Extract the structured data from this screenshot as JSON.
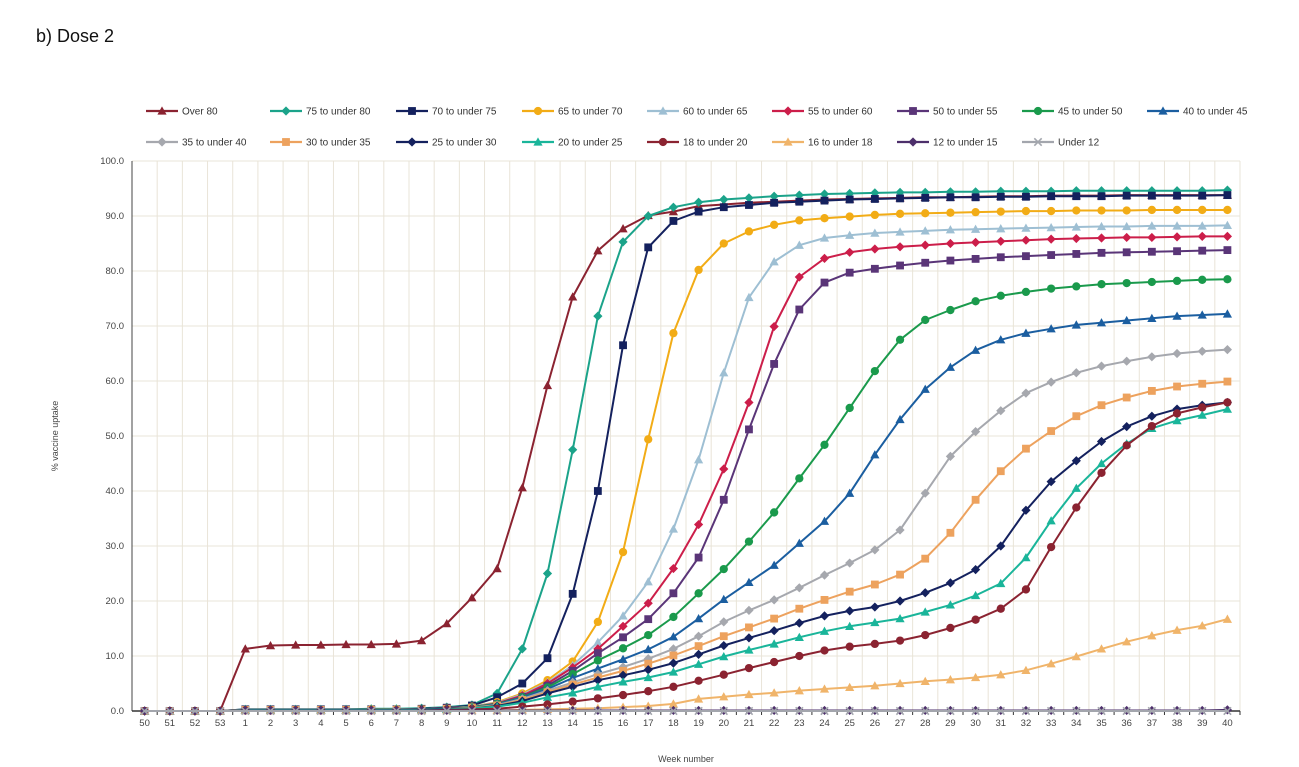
{
  "page_title": "b) Dose 2",
  "chart_data": {
    "type": "line",
    "title": "",
    "xlabel": "Week number",
    "ylabel": "% vaccine uptake",
    "categories": [
      "50",
      "51",
      "52",
      "53",
      "1",
      "2",
      "3",
      "4",
      "5",
      "6",
      "7",
      "8",
      "9",
      "10",
      "11",
      "12",
      "13",
      "14",
      "15",
      "16",
      "17",
      "18",
      "19",
      "20",
      "21",
      "22",
      "23",
      "24",
      "25",
      "26",
      "27",
      "28",
      "29",
      "30",
      "31",
      "32",
      "33",
      "34",
      "35",
      "36",
      "37",
      "38",
      "39",
      "40"
    ],
    "ylim": [
      0,
      100
    ],
    "yticks": [
      "0.0",
      "10.0",
      "20.0",
      "30.0",
      "40.0",
      "50.0",
      "60.0",
      "70.0",
      "80.0",
      "90.0",
      "100.0"
    ],
    "grid": true,
    "legend_position": "top",
    "series": [
      {
        "name": "Over 80",
        "color": "#8b2331",
        "marker": "triangle",
        "values": [
          0,
          0,
          0,
          0,
          11.3,
          11.9,
          12.0,
          12.0,
          12.1,
          12.1,
          12.2,
          12.8,
          15.9,
          20.6,
          25.9,
          40.6,
          59.2,
          75.3,
          83.7,
          87.7,
          90.1,
          90.8,
          91.8,
          92.1,
          92.4,
          92.6,
          92.8,
          93.0,
          93.1,
          93.2,
          93.3,
          93.4,
          93.4,
          93.5,
          93.6,
          93.6,
          93.7,
          93.7,
          93.7,
          93.8,
          93.8,
          93.8,
          93.8,
          93.8
        ]
      },
      {
        "name": "75 to under 80",
        "color": "#1ba38a",
        "marker": "diamond",
        "values": [
          0,
          0,
          0,
          0,
          0.3,
          0.3,
          0.3,
          0.3,
          0.3,
          0.4,
          0.4,
          0.5,
          0.7,
          1.1,
          3.2,
          11.3,
          25.0,
          47.5,
          71.8,
          85.3,
          90.0,
          91.6,
          92.5,
          93.0,
          93.3,
          93.6,
          93.8,
          94.0,
          94.1,
          94.2,
          94.3,
          94.3,
          94.4,
          94.4,
          94.5,
          94.5,
          94.5,
          94.6,
          94.6,
          94.6,
          94.6,
          94.6,
          94.6,
          94.7
        ]
      },
      {
        "name": "70 to under 75",
        "color": "#14215e",
        "marker": "square",
        "values": [
          0,
          0,
          0,
          0,
          0.3,
          0.3,
          0.3,
          0.3,
          0.3,
          0.3,
          0.3,
          0.4,
          0.6,
          1.0,
          2.5,
          5.0,
          9.6,
          21.3,
          40.0,
          66.5,
          84.3,
          89.1,
          90.8,
          91.6,
          92.0,
          92.4,
          92.6,
          92.8,
          93.0,
          93.1,
          93.2,
          93.3,
          93.4,
          93.4,
          93.5,
          93.5,
          93.6,
          93.6,
          93.6,
          93.7,
          93.7,
          93.7,
          93.7,
          93.8
        ]
      },
      {
        "name": "65 to under 70",
        "color": "#f2ac16",
        "marker": "circle",
        "values": [
          0,
          0,
          0,
          0,
          0.2,
          0.2,
          0.2,
          0.2,
          0.2,
          0.3,
          0.3,
          0.3,
          0.5,
          0.8,
          1.6,
          3.2,
          5.6,
          9.0,
          16.2,
          28.9,
          49.4,
          68.7,
          80.2,
          85.0,
          87.2,
          88.4,
          89.2,
          89.6,
          89.9,
          90.2,
          90.4,
          90.5,
          90.6,
          90.7,
          90.8,
          90.9,
          90.9,
          91.0,
          91.0,
          91.0,
          91.1,
          91.1,
          91.1,
          91.1
        ]
      },
      {
        "name": "60 to under 65",
        "color": "#9ebfd3",
        "marker": "triangle",
        "values": [
          0,
          0,
          0,
          0,
          0.2,
          0.2,
          0.2,
          0.2,
          0.2,
          0.2,
          0.3,
          0.3,
          0.5,
          0.8,
          1.5,
          3.0,
          5.2,
          8.3,
          12.5,
          17.3,
          23.5,
          33.1,
          45.7,
          61.5,
          75.2,
          81.7,
          84.7,
          86.0,
          86.5,
          86.9,
          87.1,
          87.3,
          87.5,
          87.6,
          87.7,
          87.8,
          87.9,
          88.0,
          88.1,
          88.1,
          88.2,
          88.2,
          88.2,
          88.3
        ]
      },
      {
        "name": "55 to under 60",
        "color": "#cc1e4a",
        "marker": "diamond",
        "values": [
          0,
          0,
          0,
          0,
          0.2,
          0.2,
          0.2,
          0.2,
          0.2,
          0.2,
          0.2,
          0.3,
          0.5,
          0.7,
          1.4,
          2.8,
          5.0,
          7.9,
          11.3,
          15.4,
          19.6,
          25.9,
          33.9,
          44.0,
          56.1,
          69.9,
          78.9,
          82.3,
          83.4,
          84.0,
          84.4,
          84.7,
          85.0,
          85.2,
          85.4,
          85.6,
          85.8,
          85.9,
          86.0,
          86.1,
          86.1,
          86.2,
          86.3,
          86.3
        ]
      },
      {
        "name": "50 to under 55",
        "color": "#5a3578",
        "marker": "square",
        "values": [
          0,
          0,
          0,
          0,
          0.2,
          0.2,
          0.2,
          0.2,
          0.2,
          0.2,
          0.2,
          0.3,
          0.5,
          0.7,
          1.3,
          2.6,
          4.6,
          7.3,
          10.5,
          13.4,
          16.7,
          21.4,
          27.9,
          38.4,
          51.2,
          63.1,
          73.0,
          77.9,
          79.7,
          80.4,
          81.0,
          81.5,
          81.9,
          82.2,
          82.5,
          82.7,
          82.9,
          83.1,
          83.3,
          83.4,
          83.5,
          83.6,
          83.7,
          83.8
        ]
      },
      {
        "name": "45 to under 50",
        "color": "#1a9a4c",
        "marker": "circle",
        "values": [
          0,
          0,
          0,
          0,
          0.2,
          0.2,
          0.2,
          0.2,
          0.2,
          0.2,
          0.2,
          0.3,
          0.4,
          0.7,
          1.3,
          2.5,
          4.3,
          6.7,
          9.2,
          11.4,
          13.8,
          17.1,
          21.4,
          25.8,
          30.8,
          36.1,
          42.3,
          48.4,
          55.1,
          61.8,
          67.5,
          71.1,
          72.9,
          74.5,
          75.5,
          76.2,
          76.8,
          77.2,
          77.6,
          77.8,
          78.0,
          78.2,
          78.4,
          78.5
        ]
      },
      {
        "name": "40 to under 45",
        "color": "#1b5ea0",
        "marker": "triangle",
        "values": [
          0,
          0,
          0,
          0,
          0.2,
          0.2,
          0.2,
          0.2,
          0.2,
          0.2,
          0.2,
          0.3,
          0.4,
          0.6,
          1.2,
          2.4,
          4.0,
          6.0,
          7.7,
          9.4,
          11.2,
          13.5,
          16.8,
          20.3,
          23.4,
          26.5,
          30.5,
          34.5,
          39.6,
          46.6,
          53.0,
          58.5,
          62.5,
          65.6,
          67.5,
          68.7,
          69.5,
          70.2,
          70.6,
          71.0,
          71.4,
          71.8,
          72.0,
          72.2
        ]
      },
      {
        "name": "35 to under 40",
        "color": "#a6a8ae",
        "marker": "diamond",
        "values": [
          0,
          0,
          0,
          0,
          0.2,
          0.2,
          0.2,
          0.2,
          0.2,
          0.2,
          0.2,
          0.3,
          0.4,
          0.6,
          1.1,
          2.2,
          3.7,
          5.2,
          6.7,
          8.0,
          9.5,
          11.3,
          13.6,
          16.2,
          18.3,
          20.2,
          22.4,
          24.7,
          26.9,
          29.3,
          32.9,
          39.6,
          46.3,
          50.8,
          54.6,
          57.8,
          59.8,
          61.5,
          62.7,
          63.6,
          64.4,
          65.0,
          65.4,
          65.7
        ]
      },
      {
        "name": "30 to under 35",
        "color": "#eda25e",
        "marker": "square",
        "values": [
          0,
          0,
          0,
          0,
          0.2,
          0.2,
          0.2,
          0.2,
          0.2,
          0.2,
          0.2,
          0.3,
          0.4,
          0.6,
          1.0,
          2.0,
          3.4,
          4.8,
          6.1,
          7.3,
          8.6,
          10.1,
          11.8,
          13.6,
          15.2,
          16.8,
          18.6,
          20.2,
          21.7,
          23.0,
          24.8,
          27.7,
          32.4,
          38.4,
          43.6,
          47.7,
          50.9,
          53.6,
          55.6,
          57.0,
          58.2,
          59.0,
          59.5,
          59.9
        ]
      },
      {
        "name": "25 to under 30",
        "color": "#14215e",
        "marker": "diamond",
        "values": [
          0,
          0,
          0,
          0,
          0.2,
          0.2,
          0.2,
          0.2,
          0.2,
          0.2,
          0.2,
          0.3,
          0.4,
          0.5,
          0.9,
          1.8,
          3.2,
          4.4,
          5.6,
          6.5,
          7.5,
          8.7,
          10.3,
          11.9,
          13.3,
          14.6,
          16.0,
          17.3,
          18.2,
          18.9,
          20.0,
          21.5,
          23.3,
          25.7,
          30.0,
          36.5,
          41.7,
          45.5,
          49.0,
          51.7,
          53.6,
          54.9,
          55.6,
          56.1
        ]
      },
      {
        "name": "20 to under 25",
        "color": "#1ab59a",
        "marker": "triangle",
        "values": [
          0,
          0,
          0,
          0,
          0.2,
          0.2,
          0.2,
          0.2,
          0.2,
          0.2,
          0.2,
          0.2,
          0.3,
          0.5,
          0.8,
          1.5,
          2.5,
          3.3,
          4.4,
          5.3,
          6.1,
          7.1,
          8.5,
          9.9,
          11.1,
          12.2,
          13.4,
          14.5,
          15.4,
          16.1,
          16.8,
          18.0,
          19.3,
          21.0,
          23.2,
          27.9,
          34.6,
          40.5,
          45.0,
          48.6,
          51.4,
          52.8,
          53.8,
          54.9
        ]
      },
      {
        "name": "18 to under 20",
        "color": "#8b2331",
        "marker": "circle",
        "values": [
          0,
          0,
          0,
          0,
          0.1,
          0.1,
          0.1,
          0.1,
          0.1,
          0.1,
          0.1,
          0.1,
          0.2,
          0.3,
          0.4,
          0.8,
          1.2,
          1.7,
          2.3,
          2.9,
          3.6,
          4.4,
          5.5,
          6.6,
          7.8,
          8.9,
          10.0,
          11.0,
          11.7,
          12.2,
          12.8,
          13.8,
          15.1,
          16.6,
          18.6,
          22.1,
          29.8,
          37.0,
          43.3,
          48.3,
          51.8,
          54.1,
          55.2,
          56.1
        ]
      },
      {
        "name": "16 to under 18",
        "color": "#f0b46a",
        "marker": "triangle",
        "values": [
          0,
          0,
          0,
          0,
          0.1,
          0.1,
          0.1,
          0.1,
          0.1,
          0.1,
          0.1,
          0.1,
          0.1,
          0.1,
          0.1,
          0.2,
          0.3,
          0.4,
          0.5,
          0.7,
          0.9,
          1.3,
          2.2,
          2.6,
          3.0,
          3.3,
          3.7,
          4.0,
          4.3,
          4.6,
          5.0,
          5.4,
          5.7,
          6.1,
          6.6,
          7.4,
          8.6,
          9.9,
          11.3,
          12.6,
          13.7,
          14.7,
          15.5,
          16.7
        ]
      },
      {
        "name": "12 to under 15",
        "color": "#4d2f6b",
        "marker": "diamond",
        "values": [
          0,
          0,
          0,
          0,
          0.1,
          0.1,
          0.1,
          0.1,
          0.1,
          0.1,
          0.1,
          0.1,
          0.1,
          0.1,
          0.1,
          0.1,
          0.1,
          0.1,
          0.1,
          0.1,
          0.1,
          0.1,
          0.1,
          0.1,
          0.1,
          0.1,
          0.1,
          0.1,
          0.1,
          0.1,
          0.1,
          0.1,
          0.1,
          0.1,
          0.1,
          0.1,
          0.1,
          0.1,
          0.1,
          0.1,
          0.1,
          0.1,
          0.1,
          0.2
        ]
      },
      {
        "name": "Under 12",
        "color": "#a3a6ad",
        "marker": "cross",
        "values": [
          0,
          0,
          0,
          0,
          0,
          0,
          0,
          0,
          0,
          0,
          0,
          0,
          0,
          0,
          0,
          0,
          0,
          0,
          0,
          0,
          0,
          0,
          0,
          0,
          0,
          0,
          0,
          0,
          0,
          0,
          0,
          0,
          0,
          0,
          0,
          0,
          0,
          0,
          0,
          0,
          0,
          0,
          0,
          0
        ]
      }
    ]
  }
}
